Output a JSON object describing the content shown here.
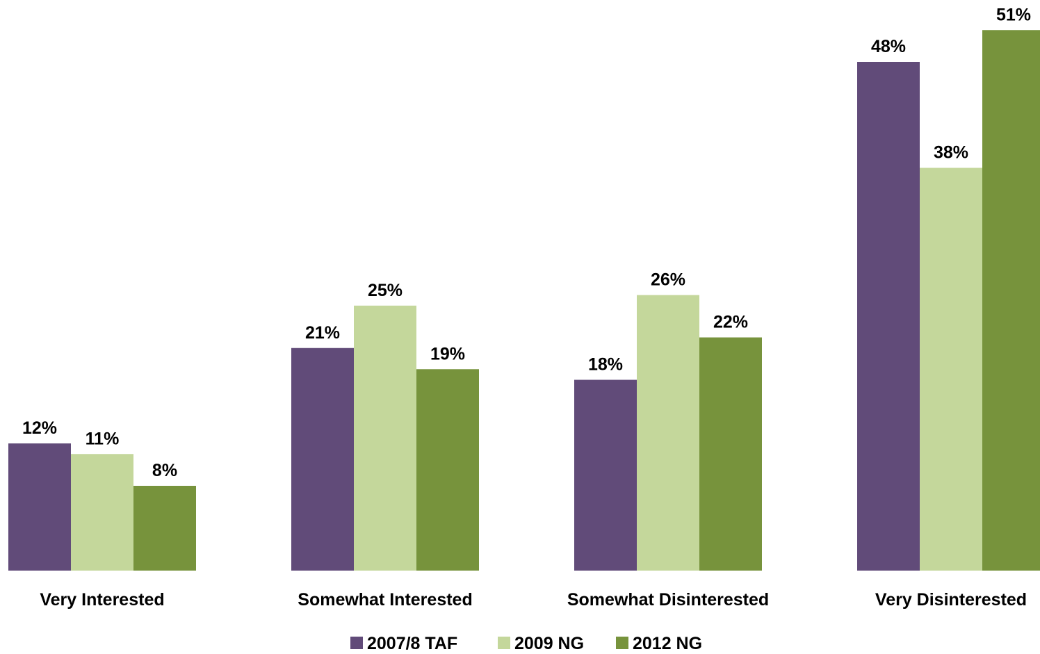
{
  "chart_data": {
    "type": "bar",
    "categories": [
      "Very Interested",
      "Somewhat Interested",
      "Somewhat Disinterested",
      "Very Disinterested"
    ],
    "series": [
      {
        "name": "2007/8 TAF",
        "color": "#614B79",
        "values": [
          12,
          21,
          18,
          48
        ],
        "labels": [
          "12%",
          "21%",
          "18%",
          "48%"
        ]
      },
      {
        "name": "2009 NG",
        "color": "#C4D79B",
        "values": [
          11,
          25,
          26,
          38
        ],
        "labels": [
          "11%",
          "25%",
          "26%",
          "38%"
        ]
      },
      {
        "name": "2012 NG",
        "color": "#77933C",
        "values": [
          8,
          19,
          22,
          51
        ],
        "labels": [
          "8%",
          "19%",
          "22%",
          "51%"
        ]
      }
    ],
    "ylim": [
      0,
      54
    ],
    "grid": false,
    "legend_position": "bottom-center"
  }
}
